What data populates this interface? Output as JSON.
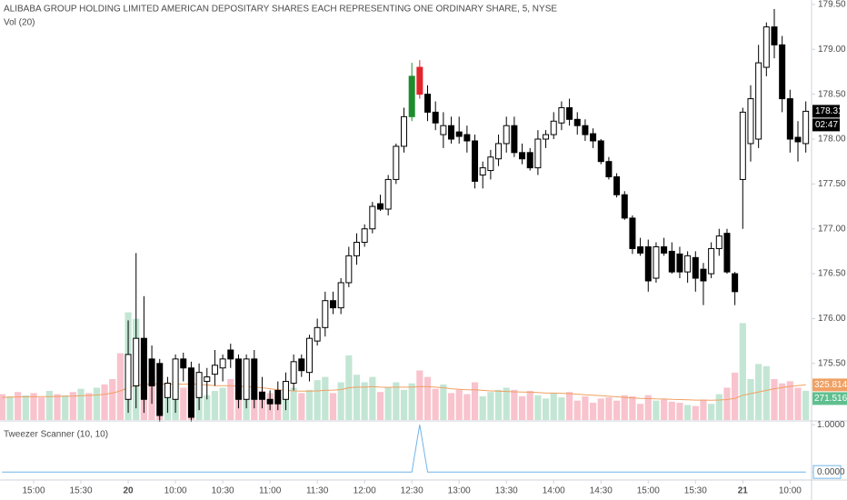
{
  "chart_data": [
    {
      "type": "candlestick",
      "title": "ALIBABA GROUP HOLDING LIMITED AMERICAN DEPOSITARY SHARES EACH REPRESENTING ONE ORDINARY SHARE, 5, NYSE",
      "countdown": "02:47",
      "up_color": "#ffffff",
      "down_color": "#000000",
      "edge_color": "#000000",
      "pattern_x": [
        52,
        53
      ],
      "pattern_colors": [
        "#1e8c2e",
        "#e3242b"
      ],
      "xlim": [
        -0.27,
        102.73
      ],
      "xticks": [
        {
          "value": 4,
          "label": "15:00"
        },
        {
          "value": 10,
          "label": "15:30"
        },
        {
          "value": 16,
          "label": "20"
        },
        {
          "value": 22,
          "label": "10:00"
        },
        {
          "value": 28,
          "label": "10:30"
        },
        {
          "value": 34,
          "label": "11:00"
        },
        {
          "value": 40,
          "label": "11:30"
        },
        {
          "value": 46,
          "label": "12:00"
        },
        {
          "value": 52,
          "label": "12:30"
        },
        {
          "value": 58,
          "label": "13:00"
        },
        {
          "value": 64,
          "label": "13:30"
        },
        {
          "value": 70,
          "label": "14:00"
        },
        {
          "value": 76,
          "label": "14:30"
        },
        {
          "value": 82,
          "label": "15:00"
        },
        {
          "value": 88,
          "label": "15:30"
        },
        {
          "value": 94,
          "label": "21"
        },
        {
          "value": 100,
          "label": "10:00"
        }
      ],
      "ylim": [
        174.87,
        179.55
      ],
      "yticks": [
        {
          "value": 175.5,
          "label": "175.50"
        },
        {
          "value": 176,
          "label": "176.00"
        },
        {
          "value": 176.5,
          "label": "176.50"
        },
        {
          "value": 177,
          "label": "177.00"
        },
        {
          "value": 177.5,
          "label": "177.50"
        },
        {
          "value": 178,
          "label": "178.00"
        },
        {
          "value": 178.5,
          "label": "178.50"
        },
        {
          "value": 179,
          "label": "179.00"
        },
        {
          "value": 179.5,
          "label": "179.50"
        }
      ],
      "x": [
        16,
        17,
        18,
        19,
        20,
        21,
        22,
        23,
        24,
        25,
        26,
        27,
        28,
        29,
        30,
        31,
        32,
        33,
        34,
        35,
        36,
        37,
        38,
        39,
        40,
        41,
        42,
        43,
        44,
        45,
        46,
        47,
        48,
        49,
        50,
        51,
        52,
        53,
        54,
        55,
        56,
        57,
        58,
        59,
        60,
        61,
        62,
        63,
        64,
        65,
        66,
        67,
        68,
        69,
        70,
        71,
        72,
        73,
        74,
        75,
        76,
        77,
        78,
        79,
        80,
        81,
        82,
        83,
        84,
        85,
        86,
        87,
        88,
        89,
        90,
        91,
        92,
        93,
        94,
        95,
        96,
        97,
        98,
        99,
        100,
        101,
        102
      ],
      "open": [
        175.1,
        175.25,
        175.78,
        175.55,
        175.5,
        175.12,
        175.1,
        175.55,
        175.45,
        175.12,
        175.3,
        175.38,
        175.45,
        175.65,
        175.55,
        175.1,
        175.55,
        175.18,
        175.1,
        175.2,
        175.1,
        175.28,
        175.55,
        175.4,
        175.75,
        175.9,
        176.2,
        176.12,
        176.4,
        176.7,
        176.85,
        177.0,
        177.28,
        177.22,
        177.55,
        177.92,
        178.25,
        178.8,
        178.5,
        178.3,
        178.05,
        178.15,
        178.08,
        178.05,
        177.98,
        177.6,
        177.65,
        177.78,
        177.95,
        178.15,
        177.85,
        177.85,
        177.68,
        178.0,
        178.05,
        178.18,
        178.35,
        178.22,
        178.15,
        178.06,
        177.98,
        177.75,
        177.58,
        177.38,
        177.12,
        176.8,
        176.8,
        176.45,
        176.8,
        176.75,
        176.72,
        176.52,
        176.68,
        176.55,
        176.5,
        176.78,
        176.95,
        176.5,
        177.55,
        177.95,
        178.0,
        178.8,
        179.25,
        179.05,
        178.45,
        178.02,
        177.95
      ],
      "high": [
        175.98,
        176.73,
        176.25,
        175.7,
        175.55,
        175.35,
        175.6,
        175.62,
        175.52,
        175.5,
        175.45,
        175.65,
        175.6,
        175.72,
        175.6,
        175.6,
        175.65,
        175.35,
        175.2,
        175.3,
        175.4,
        175.6,
        175.6,
        175.82,
        176.0,
        176.3,
        176.3,
        176.45,
        176.8,
        176.95,
        177.05,
        177.3,
        177.38,
        177.6,
        177.95,
        178.35,
        178.85,
        178.88,
        178.6,
        178.42,
        178.3,
        178.25,
        178.25,
        178.15,
        178.05,
        177.75,
        177.88,
        178.05,
        178.25,
        178.25,
        177.95,
        177.9,
        178.1,
        178.1,
        178.3,
        178.42,
        178.45,
        178.3,
        178.22,
        178.12,
        178.0,
        177.8,
        177.62,
        177.42,
        177.15,
        176.9,
        176.88,
        176.85,
        176.9,
        176.85,
        176.8,
        176.75,
        176.75,
        176.62,
        176.85,
        177.0,
        177.0,
        176.52,
        178.35,
        178.6,
        179.05,
        179.3,
        179.45,
        179.15,
        178.55,
        178.2,
        178.42
      ],
      "low": [
        174.95,
        175.0,
        174.95,
        175.05,
        174.85,
        174.95,
        174.95,
        175.3,
        174.85,
        174.98,
        175.1,
        175.25,
        175.3,
        175.45,
        175.0,
        175.0,
        175.0,
        175.0,
        174.98,
        174.98,
        174.98,
        175.2,
        175.35,
        175.3,
        175.7,
        175.8,
        176.05,
        176.05,
        176.35,
        176.6,
        176.8,
        176.95,
        177.2,
        177.15,
        177.5,
        177.85,
        178.2,
        178.45,
        178.2,
        178.1,
        177.9,
        177.95,
        177.95,
        177.85,
        177.45,
        177.45,
        177.55,
        177.7,
        177.85,
        177.8,
        177.72,
        177.65,
        177.6,
        177.9,
        178.0,
        178.1,
        178.15,
        178.05,
        177.98,
        177.9,
        177.72,
        177.55,
        177.35,
        177.1,
        176.72,
        176.7,
        176.3,
        176.4,
        176.7,
        176.5,
        176.45,
        176.4,
        176.3,
        176.15,
        176.45,
        176.7,
        176.5,
        176.15,
        177.0,
        177.75,
        177.9,
        178.7,
        178.9,
        178.3,
        177.85,
        177.75,
        177.85
      ],
      "close": [
        175.6,
        175.78,
        175.1,
        175.25,
        174.92,
        175.28,
        175.55,
        175.45,
        174.9,
        175.4,
        175.35,
        175.48,
        175.55,
        175.55,
        175.1,
        175.55,
        175.1,
        175.1,
        175.05,
        175.05,
        175.3,
        175.52,
        175.42,
        175.78,
        175.9,
        176.2,
        176.12,
        176.4,
        176.7,
        176.85,
        177.0,
        177.25,
        177.22,
        177.55,
        177.92,
        178.25,
        178.7,
        178.5,
        178.3,
        178.18,
        178.15,
        178.0,
        178.03,
        177.98,
        177.53,
        177.68,
        177.8,
        177.95,
        178.15,
        177.85,
        177.78,
        177.68,
        178.0,
        178.05,
        178.2,
        178.35,
        178.22,
        178.15,
        178.05,
        177.98,
        177.75,
        177.58,
        177.38,
        177.12,
        176.78,
        176.73,
        176.42,
        176.8,
        176.73,
        176.52,
        176.52,
        176.7,
        176.45,
        176.42,
        176.78,
        176.92,
        176.52,
        176.3,
        178.3,
        178.45,
        178.85,
        179.25,
        179.05,
        178.45,
        178.0,
        177.97,
        178.31
      ]
    },
    {
      "type": "bar",
      "title": "Vol (20)",
      "value_label": "271.516K",
      "ma_label": "325.814K",
      "ma_color": "#f0a062",
      "label_color": "#5fbf8f",
      "ylim": [
        0,
        3900000
      ],
      "x": [
        0,
        1,
        2,
        3,
        4,
        5,
        6,
        7,
        8,
        9,
        10,
        11,
        12,
        13,
        14,
        15,
        16,
        17,
        18,
        19,
        20,
        21,
        22,
        23,
        24,
        25,
        26,
        27,
        28,
        29,
        30,
        31,
        32,
        33,
        34,
        35,
        36,
        37,
        38,
        39,
        40,
        41,
        42,
        43,
        44,
        45,
        46,
        47,
        48,
        49,
        50,
        51,
        52,
        53,
        54,
        55,
        56,
        57,
        58,
        59,
        60,
        61,
        62,
        63,
        64,
        65,
        66,
        67,
        68,
        69,
        70,
        71,
        72,
        73,
        74,
        75,
        76,
        77,
        78,
        79,
        80,
        81,
        82,
        83,
        84,
        85,
        86,
        87,
        88,
        89,
        90,
        91,
        92,
        93,
        94,
        95,
        96,
        97,
        98,
        99,
        100,
        101,
        102
      ],
      "values": [
        240000,
        220000,
        260000,
        230000,
        250000,
        210000,
        270000,
        240000,
        230000,
        260000,
        290000,
        250000,
        300000,
        330000,
        380000,
        620000,
        1000000,
        940000,
        500000,
        420000,
        300000,
        250000,
        380000,
        300000,
        440000,
        250000,
        230000,
        270000,
        300000,
        380000,
        320000,
        280000,
        380000,
        270000,
        250000,
        200000,
        230000,
        300000,
        250000,
        280000,
        370000,
        400000,
        250000,
        350000,
        600000,
        420000,
        350000,
        400000,
        260000,
        300000,
        350000,
        280000,
        340000,
        460000,
        400000,
        290000,
        330000,
        250000,
        280000,
        240000,
        350000,
        220000,
        260000,
        280000,
        300000,
        280000,
        220000,
        270000,
        230000,
        200000,
        250000,
        210000,
        260000,
        180000,
        220000,
        160000,
        200000,
        210000,
        180000,
        230000,
        220000,
        150000,
        230000,
        180000,
        190000,
        170000,
        160000,
        140000,
        130000,
        190000,
        150000,
        240000,
        300000,
        440000,
        900000,
        380000,
        520000,
        500000,
        380000,
        340000,
        360000,
        300000,
        271516
      ],
      "colors": [
        "#f8c3cd",
        "#c3e6d4",
        "#f8c3cd",
        "#c3e6d4",
        "#f8c3cd",
        "#f8c3cd",
        "#c3e6d4",
        "#f8c3cd",
        "#c3e6d4",
        "#f8c3cd",
        "#c3e6d4",
        "#f8c3cd",
        "#c3e6d4",
        "#f8c3cd",
        "#f8c3cd",
        "#f8c3cd",
        "#c3e6d4",
        "#c3e6d4",
        "#f8c3cd",
        "#f8c3cd",
        "#f8c3cd",
        "#c3e6d4",
        "#c3e6d4",
        "#f8c3cd",
        "#f8c3cd",
        "#c3e6d4",
        "#c3e6d4",
        "#c3e6d4",
        "#c3e6d4",
        "#f8c3cd",
        "#f8c3cd",
        "#c3e6d4",
        "#f8c3cd",
        "#f8c3cd",
        "#f8c3cd",
        "#f8c3cd",
        "#c3e6d4",
        "#c3e6d4",
        "#f8c3cd",
        "#c3e6d4",
        "#c3e6d4",
        "#c3e6d4",
        "#f8c3cd",
        "#c3e6d4",
        "#c3e6d4",
        "#c3e6d4",
        "#c3e6d4",
        "#c3e6d4",
        "#f8c3cd",
        "#c3e6d4",
        "#c3e6d4",
        "#c3e6d4",
        "#c3e6d4",
        "#f8c3cd",
        "#f8c3cd",
        "#f8c3cd",
        "#c3e6d4",
        "#f8c3cd",
        "#f8c3cd",
        "#f8c3cd",
        "#f8c3cd",
        "#c3e6d4",
        "#c3e6d4",
        "#c3e6d4",
        "#c3e6d4",
        "#f8c3cd",
        "#f8c3cd",
        "#f8c3cd",
        "#c3e6d4",
        "#c3e6d4",
        "#c3e6d4",
        "#c3e6d4",
        "#f8c3cd",
        "#f8c3cd",
        "#f8c3cd",
        "#f8c3cd",
        "#f8c3cd",
        "#f8c3cd",
        "#f8c3cd",
        "#f8c3cd",
        "#f8c3cd",
        "#f8c3cd",
        "#f8c3cd",
        "#c3e6d4",
        "#f8c3cd",
        "#f8c3cd",
        "#f8c3cd",
        "#c3e6d4",
        "#f8c3cd",
        "#f8c3cd",
        "#c3e6d4",
        "#c3e6d4",
        "#f8c3cd",
        "#f8c3cd",
        "#c3e6d4",
        "#c3e6d4",
        "#c3e6d4",
        "#c3e6d4",
        "#f8c3cd",
        "#f8c3cd",
        "#f8c3cd",
        "#f8c3cd",
        "#c3e6d4"
      ],
      "ma": [
        210000,
        212000,
        214000,
        215000,
        216000,
        217000,
        218000,
        219000,
        220000,
        222000,
        225000,
        228000,
        232000,
        238000,
        250000,
        270000,
        300000,
        320000,
        330000,
        335000,
        335000,
        333000,
        335000,
        333000,
        335000,
        330000,
        325000,
        320000,
        318000,
        318000,
        315000,
        310000,
        305000,
        300000,
        290000,
        280000,
        275000,
        270000,
        268000,
        268000,
        270000,
        275000,
        278000,
        282000,
        300000,
        305000,
        305000,
        310000,
        305000,
        303000,
        305000,
        305000,
        305000,
        310000,
        310000,
        305000,
        300000,
        290000,
        285000,
        280000,
        280000,
        275000,
        270000,
        268000,
        265000,
        262000,
        260000,
        258000,
        255000,
        250000,
        250000,
        248000,
        245000,
        240000,
        235000,
        230000,
        225000,
        220000,
        215000,
        210000,
        205000,
        200000,
        198000,
        196000,
        195000,
        192000,
        190000,
        188000,
        185000,
        185000,
        184000,
        186000,
        190000,
        200000,
        230000,
        245000,
        260000,
        275000,
        290000,
        302000,
        312000,
        320000,
        325814
      ]
    },
    {
      "type": "line",
      "title": "Tweezer Scanner (10, 10)",
      "color": "#6fb3e8",
      "ylim": [
        -0.17,
        1.08
      ],
      "yticks": [
        {
          "value": 0,
          "label": "0.0000"
        },
        {
          "value": 1,
          "label": "1.0000"
        }
      ],
      "x": [
        0,
        1,
        2,
        3,
        4,
        5,
        6,
        7,
        8,
        9,
        10,
        11,
        12,
        13,
        14,
        15,
        16,
        17,
        18,
        19,
        20,
        21,
        22,
        23,
        24,
        25,
        26,
        27,
        28,
        29,
        30,
        31,
        32,
        33,
        34,
        35,
        36,
        37,
        38,
        39,
        40,
        41,
        42,
        43,
        44,
        45,
        46,
        47,
        48,
        49,
        50,
        51,
        52,
        53,
        54,
        55,
        56,
        57,
        58,
        59,
        60,
        61,
        62,
        63,
        64,
        65,
        66,
        67,
        68,
        69,
        70,
        71,
        72,
        73,
        74,
        75,
        76,
        77,
        78,
        79,
        80,
        81,
        82,
        83,
        84,
        85,
        86,
        87,
        88,
        89,
        90,
        91,
        92,
        93,
        94,
        95,
        96,
        97,
        98,
        99,
        100,
        101,
        102
      ],
      "values": [
        0,
        0,
        0,
        0,
        0,
        0,
        0,
        0,
        0,
        0,
        0,
        0,
        0,
        0,
        0,
        0,
        0,
        0,
        0,
        0,
        0,
        0,
        0,
        0,
        0,
        0,
        0,
        0,
        0,
        0,
        0,
        0,
        0,
        0,
        0,
        0,
        0,
        0,
        0,
        0,
        0,
        0,
        0,
        0,
        0,
        0,
        0,
        0,
        0,
        0,
        0,
        0,
        0,
        1,
        0,
        0,
        0,
        0,
        0,
        0,
        0,
        0,
        0,
        0,
        0,
        0,
        0,
        0,
        0,
        0,
        0,
        0,
        0,
        0,
        0,
        0,
        0,
        0,
        0,
        0,
        0,
        0,
        0,
        0,
        0,
        0,
        0,
        0,
        0,
        0,
        0,
        0,
        0,
        0,
        0,
        0,
        0,
        0,
        0,
        0,
        0,
        0,
        0
      ]
    }
  ]
}
